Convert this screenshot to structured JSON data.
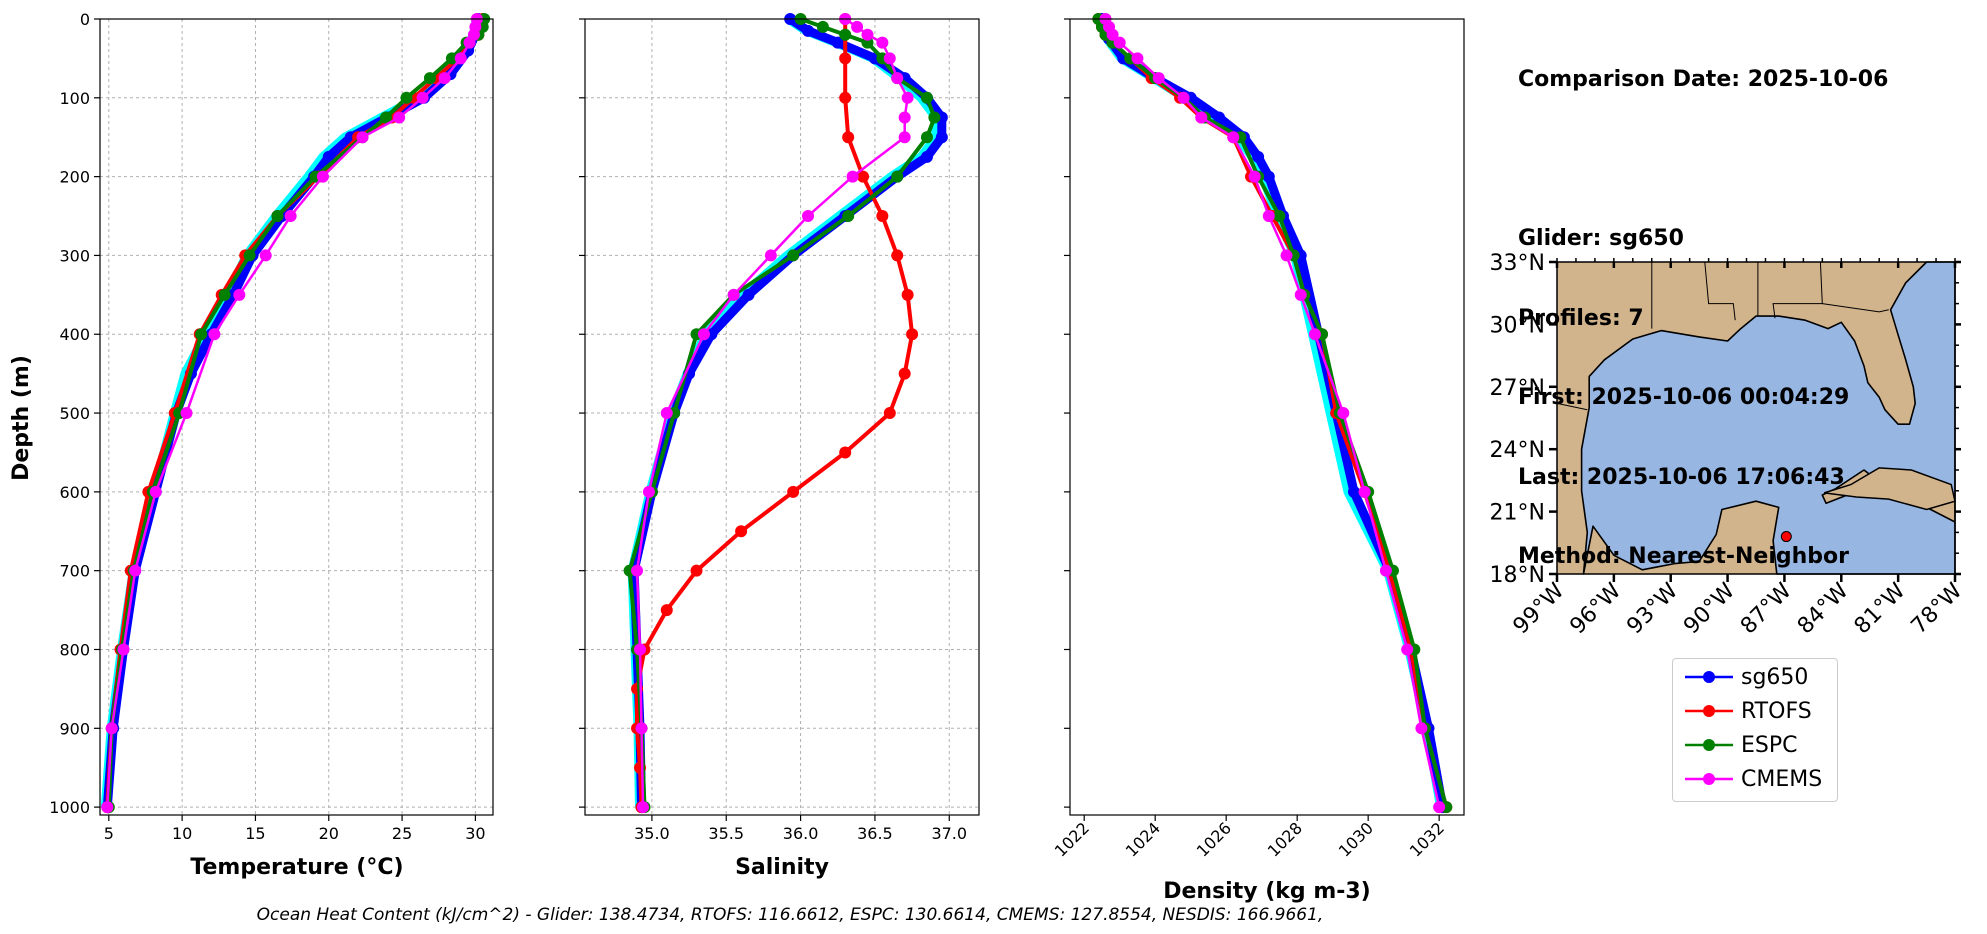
{
  "info": {
    "comparison_date": "Comparison Date: 2025-10-06",
    "glider": "Glider: sg650",
    "profiles": "Profiles: 7",
    "first": "First: 2025-10-06 00:04:29",
    "last": "Last: 2025-10-06 17:06:43",
    "method": "Method: Nearest-Neighbor"
  },
  "footer": "Ocean Heat Content (kJ/cm^2) - Glider: 138.4734,  RTOFS: 116.6612,  ESPC: 130.6614,  CMEMS: 127.8554,  NESDIS: 166.9661,",
  "colors": {
    "sg650": "#0000ff",
    "RTOFS": "#ff0000",
    "ESPC": "#008000",
    "CMEMS": "#ff00ff",
    "glider_raw": "#00ffff",
    "land": "#d2b48c",
    "ocean": "#98b6e2"
  },
  "legend": [
    "sg650",
    "RTOFS",
    "ESPC",
    "CMEMS"
  ],
  "chart_data": [
    {
      "type": "line",
      "xlabel": "Temperature (°C)",
      "ylabel": "Depth (m)",
      "xlim": [
        4.4,
        31.2
      ],
      "ylim": [
        1010,
        0
      ],
      "xticks": [
        5,
        10,
        15,
        20,
        25,
        30
      ],
      "yticks": [
        0,
        100,
        200,
        300,
        400,
        500,
        600,
        700,
        800,
        900,
        1000
      ],
      "grid": true,
      "depths_model": [
        0,
        10,
        20,
        30,
        50,
        75,
        100,
        125,
        150,
        200,
        250,
        300,
        350,
        400,
        500,
        600,
        700,
        800,
        900,
        1000
      ],
      "series": [
        {
          "name": "sg650",
          "depth": [
            0,
            20,
            40,
            70,
            100,
            125,
            150,
            175,
            200,
            250,
            300,
            350,
            400,
            450,
            500,
            600,
            700,
            800,
            900,
            1000
          ],
          "values": [
            30.2,
            30.0,
            29.5,
            28.3,
            26.5,
            24.0,
            21.5,
            20.0,
            19.0,
            16.8,
            14.8,
            13.5,
            12.0,
            10.6,
            9.6,
            8.2,
            6.8,
            6.0,
            5.3,
            4.9
          ]
        },
        {
          "name": "RTOFS",
          "values": [
            30.5,
            30.4,
            30.2,
            29.6,
            28.8,
            27.3,
            25.8,
            24.3,
            22.0,
            19.3,
            16.5,
            14.3,
            12.7,
            11.2,
            9.5,
            7.7,
            6.5,
            5.8,
            5.2,
            4.9
          ]
        },
        {
          "name": "ESPC",
          "values": [
            30.6,
            30.5,
            30.2,
            29.4,
            28.4,
            26.9,
            25.3,
            23.9,
            22.3,
            19.1,
            16.5,
            14.6,
            12.9,
            11.3,
            9.8,
            8.0,
            6.7,
            5.9,
            5.2,
            5.0
          ]
        },
        {
          "name": "CMEMS",
          "values": [
            30.1,
            30.0,
            29.9,
            29.6,
            29.0,
            27.9,
            26.4,
            24.8,
            22.3,
            19.6,
            17.4,
            15.7,
            13.9,
            12.2,
            10.3,
            8.2,
            6.8,
            6.0,
            5.2,
            4.9
          ]
        }
      ]
    },
    {
      "type": "line",
      "xlabel": "Salinity",
      "xlim": [
        34.55,
        37.2
      ],
      "ylim": [
        1010,
        0
      ],
      "xticks": [
        35.0,
        35.5,
        36.0,
        36.5,
        37.0
      ],
      "grid": true,
      "series": [
        {
          "name": "sg650",
          "depth": [
            0,
            15,
            30,
            50,
            75,
            100,
            125,
            150,
            175,
            200,
            250,
            300,
            350,
            400,
            450,
            500,
            600,
            700,
            800,
            900,
            1000
          ],
          "values": [
            35.93,
            36.05,
            36.25,
            36.5,
            36.7,
            36.85,
            36.95,
            36.95,
            36.85,
            36.65,
            36.3,
            35.95,
            35.65,
            35.4,
            35.25,
            35.15,
            35.0,
            34.88,
            34.9,
            34.92,
            34.93
          ]
        },
        {
          "name": "RTOFS",
          "values": [
            36.3,
            36.3,
            36.3,
            36.32,
            36.42,
            36.55,
            36.65,
            36.72,
            36.75,
            36.7,
            36.6,
            36.3,
            35.95,
            35.6,
            35.3,
            35.1,
            34.95,
            34.9,
            34.9,
            34.92,
            34.93
          ]
        },
        {
          "name": "ESPC",
          "values": [
            36.0,
            36.15,
            36.3,
            36.45,
            36.55,
            36.65,
            36.85,
            36.9,
            36.85,
            36.65,
            36.32,
            35.95,
            35.55,
            35.3,
            35.15,
            35.0,
            34.85,
            34.9,
            34.93,
            34.95
          ]
        },
        {
          "name": "CMEMS",
          "values": [
            36.3,
            36.38,
            36.45,
            36.55,
            36.6,
            36.65,
            36.72,
            36.7,
            36.7,
            36.35,
            36.05,
            35.8,
            35.55,
            35.35,
            35.1,
            34.98,
            34.9,
            34.92,
            34.93,
            34.94
          ]
        }
      ]
    },
    {
      "type": "line",
      "xlabel": "Density (kg m-3)",
      "xlim": [
        1021.6,
        1032.7
      ],
      "ylim": [
        1010,
        0
      ],
      "xticks": [
        1022,
        1024,
        1026,
        1028,
        1030,
        1032
      ],
      "grid": false,
      "series": [
        {
          "name": "sg650",
          "depth": [
            0,
            25,
            50,
            75,
            100,
            125,
            150,
            175,
            200,
            250,
            300,
            400,
            500,
            600,
            700,
            800,
            900,
            1000
          ],
          "values": [
            1022.5,
            1022.7,
            1023.1,
            1024.0,
            1025.0,
            1025.8,
            1026.5,
            1026.9,
            1027.2,
            1027.6,
            1028.1,
            1028.6,
            1029.1,
            1029.6,
            1030.6,
            1031.2,
            1031.7,
            1032.1
          ]
        },
        {
          "name": "RTOFS",
          "values": [
            1022.4,
            1022.5,
            1022.6,
            1022.8,
            1023.3,
            1023.9,
            1024.7,
            1025.3,
            1026.2,
            1026.7,
            1027.3,
            1027.9,
            1028.2,
            1028.7,
            1029.1,
            1029.9,
            1030.6,
            1031.2,
            1031.6,
            1032.2
          ]
        },
        {
          "name": "ESPC",
          "values": [
            1022.4,
            1022.5,
            1022.6,
            1022.8,
            1023.3,
            1024.0,
            1024.8,
            1025.4,
            1026.4,
            1026.9,
            1027.5,
            1027.9,
            1028.2,
            1028.7,
            1029.2,
            1030.0,
            1030.7,
            1031.3,
            1031.6,
            1032.2
          ]
        },
        {
          "name": "CMEMS",
          "values": [
            1022.6,
            1022.7,
            1022.8,
            1023.0,
            1023.5,
            1024.1,
            1024.8,
            1025.3,
            1026.2,
            1026.8,
            1027.2,
            1027.7,
            1028.1,
            1028.5,
            1029.3,
            1029.9,
            1030.5,
            1031.1,
            1031.5,
            1032.0
          ]
        }
      ]
    },
    {
      "type": "map",
      "lon_range": [
        -99,
        -78
      ],
      "lat_range": [
        18,
        33
      ],
      "lon_ticks": [
        "99°W",
        "96°W",
        "93°W",
        "90°W",
        "87°W",
        "84°W",
        "81°W",
        "78°W"
      ],
      "lat_ticks": [
        "33°N",
        "30°N",
        "27°N",
        "24°N",
        "21°N",
        "18°N"
      ],
      "glider_location": {
        "lon": -86.9,
        "lat": 19.8
      }
    }
  ]
}
